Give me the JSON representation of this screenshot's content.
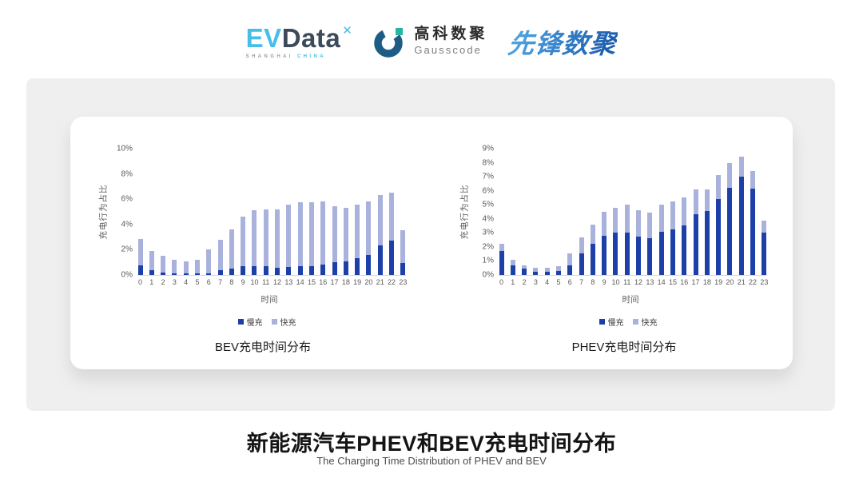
{
  "header": {
    "logos": {
      "evdata": {
        "ev": "EV",
        "data": "Data",
        "mark": "✕",
        "sub_left": "SHANGHAI",
        "sub_right": "CHINA"
      },
      "gausscode": {
        "cn": "高科数聚",
        "en": "Gausscode"
      },
      "xianfeng": {
        "text": "先锋数聚"
      }
    }
  },
  "colors": {
    "slow_charge": "#1C3FA8",
    "fast_charge": "#A9B2DC",
    "evdata_cyan": "#45BEE8",
    "evdata_dark": "#3D4A5C",
    "gauss_blue": "#1E5C86",
    "gauss_teal": "#27B5A2",
    "xianfeng_blue": "#2A7BC0"
  },
  "chart_data": [
    {
      "type": "bar",
      "stacked": true,
      "title": "BEV充电时间分布",
      "ylabel": "充电行为占比",
      "xlabel": "时间",
      "ylim": [
        0,
        10
      ],
      "ytick_step": 2,
      "ytick_suffix": "%",
      "grid": false,
      "legend_position": "bottom",
      "categories": [
        0,
        1,
        2,
        3,
        4,
        5,
        6,
        7,
        8,
        9,
        10,
        11,
        12,
        13,
        14,
        15,
        16,
        17,
        18,
        19,
        20,
        21,
        22,
        23
      ],
      "series": [
        {
          "name": "慢充",
          "values": [
            0.75,
            0.35,
            0.2,
            0.12,
            0.1,
            0.1,
            0.15,
            0.35,
            0.5,
            0.7,
            0.7,
            0.72,
            0.6,
            0.65,
            0.7,
            0.7,
            0.85,
            1.0,
            1.1,
            1.35,
            1.6,
            2.35,
            2.7,
            0.95
          ]
        },
        {
          "name": "快充",
          "values": [
            2.1,
            1.55,
            1.3,
            1.08,
            1.0,
            1.1,
            1.85,
            2.45,
            3.1,
            3.9,
            4.45,
            4.48,
            4.6,
            4.95,
            5.05,
            5.05,
            4.95,
            4.45,
            4.2,
            4.2,
            4.25,
            3.95,
            3.8,
            2.6
          ]
        }
      ]
    },
    {
      "type": "bar",
      "stacked": true,
      "title": "PHEV充电时间分布",
      "ylabel": "充电行为占比",
      "xlabel": "时间",
      "ylim": [
        0,
        9
      ],
      "ytick_step": 1,
      "ytick_suffix": "%",
      "grid": false,
      "legend_position": "bottom",
      "categories": [
        0,
        1,
        2,
        3,
        4,
        5,
        6,
        7,
        8,
        9,
        10,
        11,
        12,
        13,
        14,
        15,
        16,
        17,
        18,
        19,
        20,
        21,
        22,
        23
      ],
      "series": [
        {
          "name": "慢充",
          "values": [
            1.7,
            0.7,
            0.45,
            0.25,
            0.25,
            0.3,
            0.7,
            1.55,
            2.25,
            2.8,
            3.0,
            3.0,
            2.75,
            2.6,
            3.05,
            3.25,
            3.55,
            4.35,
            4.55,
            5.4,
            6.2,
            7.0,
            6.15,
            3.0
          ]
        },
        {
          "name": "快充",
          "values": [
            0.5,
            0.4,
            0.25,
            0.25,
            0.25,
            0.35,
            0.85,
            1.15,
            1.35,
            1.7,
            1.8,
            2.0,
            1.85,
            1.85,
            1.95,
            2.0,
            1.95,
            1.75,
            1.55,
            1.7,
            1.75,
            1.45,
            1.25,
            0.85
          ]
        }
      ]
    }
  ],
  "footer": {
    "title": "新能源汽车PHEV和BEV充电时间分布",
    "subtitle": "The Charging Time Distribution of PHEV and BEV"
  }
}
